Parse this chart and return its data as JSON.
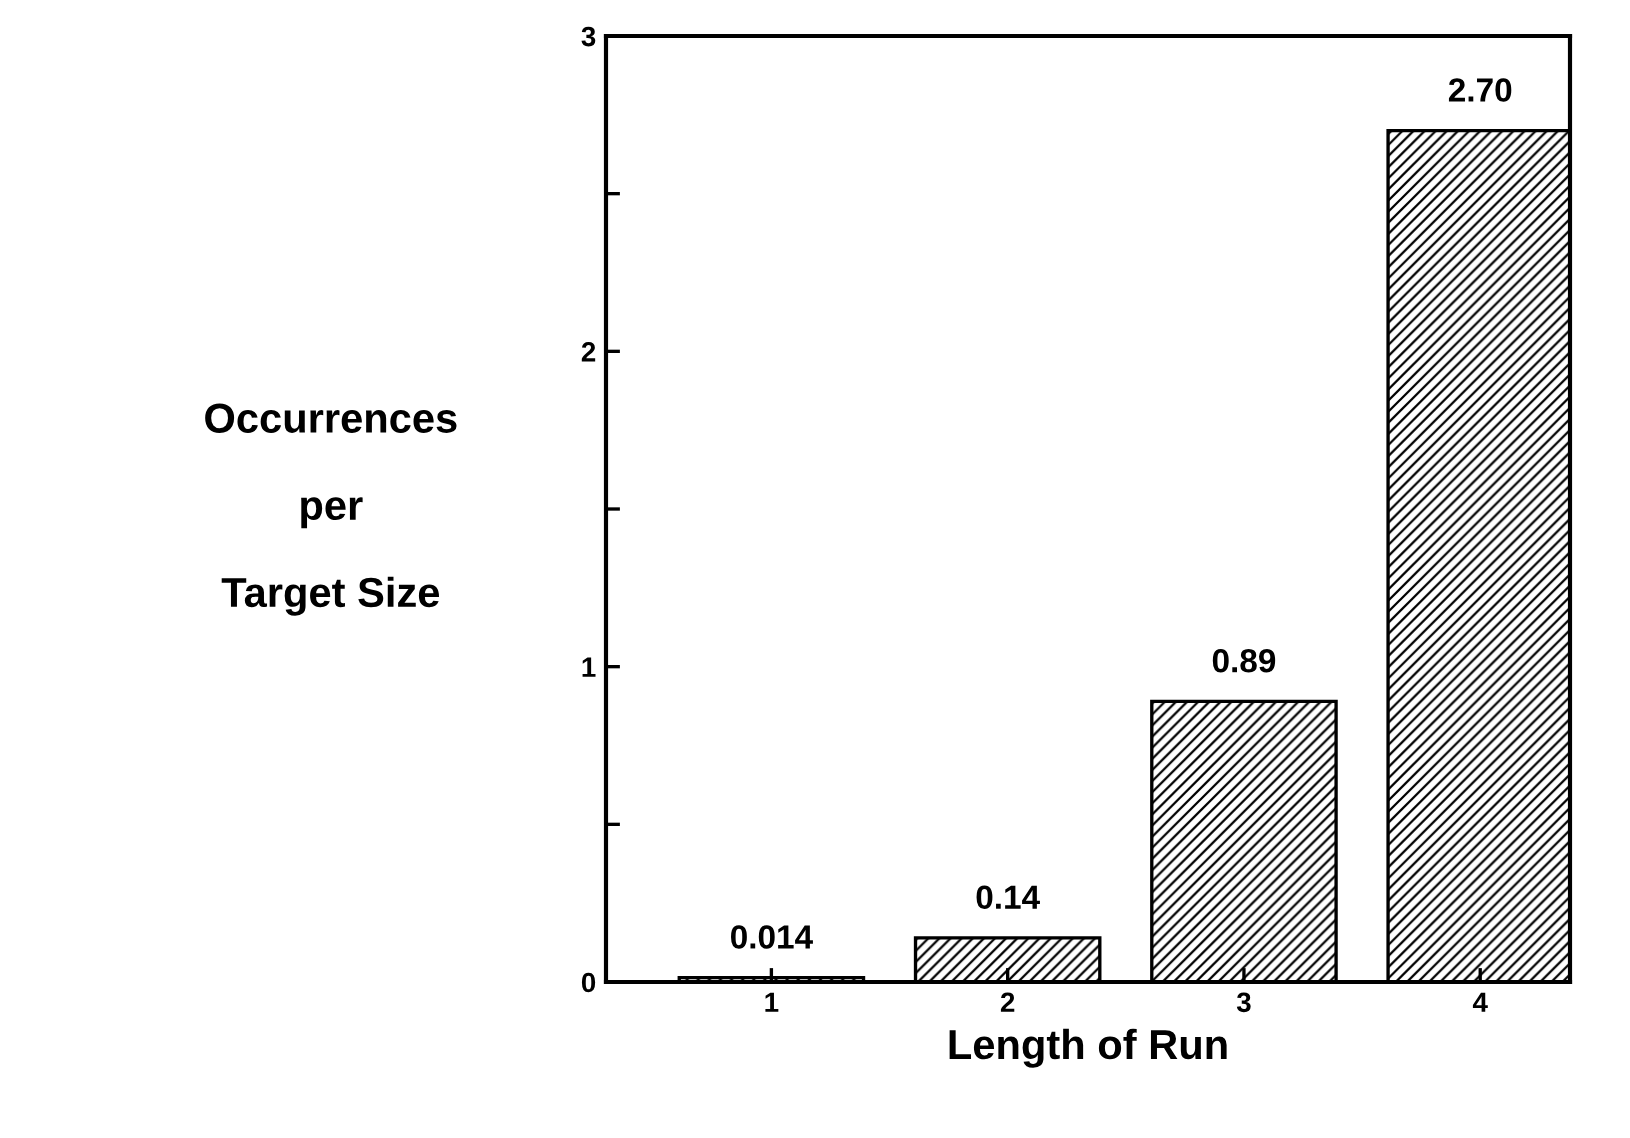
{
  "chart_data": {
    "type": "bar",
    "xlabel": "Length of Run",
    "ylabel": "Occurrences\nper\nTarget Size",
    "categories": [
      "1",
      "2",
      "3",
      "4"
    ],
    "values": [
      0.014,
      0.14,
      0.89,
      2.7
    ],
    "value_labels": [
      "0.014",
      "0.14",
      "0.89",
      "2.70"
    ],
    "color": "#000000",
    "ylim": [
      0,
      3
    ],
    "yticks": [
      0,
      {
        "value": 0.5,
        "label": null
      },
      1,
      {
        "value": 1.5,
        "label": null
      },
      2,
      {
        "value": 2.5,
        "label": null
      },
      3
    ],
    "grid": false,
    "legend": false
  }
}
